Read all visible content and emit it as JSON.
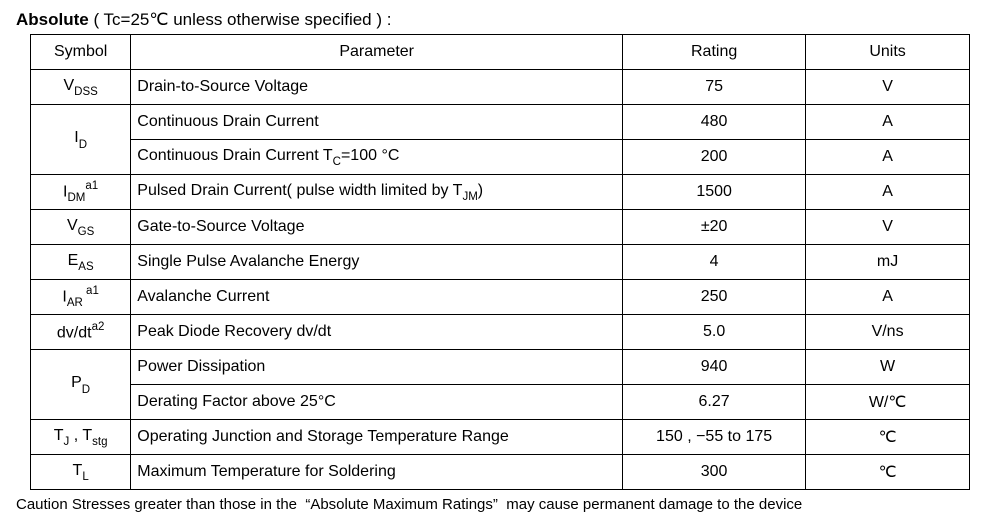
{
  "heading": {
    "title_bold": "Absolute",
    "title_rest": "( Tc=25℃  unless otherwise specified ) :"
  },
  "table": {
    "headers": {
      "symbol": "Symbol",
      "parameter": "Parameter",
      "rating": "Rating",
      "units": "Units"
    },
    "rows": {
      "vdss": {
        "sym_pre": "V",
        "sym_sub": "DSS",
        "sym_sup": "",
        "param": "Drain-to-Source Voltage",
        "rating": "75",
        "units": "V"
      },
      "id_cont": {
        "sym_pre": "I",
        "sym_sub": "D",
        "sym_sup": "",
        "param": "Continuous Drain Current",
        "rating": "480",
        "units": "A"
      },
      "id_cont100": {
        "param_pre": "Continuous Drain Current T",
        "param_sub": "C",
        "param_post": "=100 °C",
        "rating": "200",
        "units": "A"
      },
      "idm": {
        "sym_pre": "I",
        "sym_sub": "DM",
        "sym_sup": "a1",
        "param_pre": "Pulsed Drain Current( pulse width limited by T",
        "param_sub": "JM",
        "param_post": ")",
        "rating": "1500",
        "units": "A"
      },
      "vgs": {
        "sym_pre": "V",
        "sym_sub": "GS",
        "sym_sup": "",
        "param": "Gate-to-Source Voltage",
        "rating": "±20",
        "units": "V"
      },
      "eas": {
        "sym_pre": "E",
        "sym_sub": "AS",
        "sym_sup": "",
        "param": "Single Pulse Avalanche Energy",
        "rating": "4",
        "units": "mJ"
      },
      "iar": {
        "sym_pre": "I",
        "sym_sub": "AR ",
        "sym_sup": "a1",
        "param": "Avalanche Current",
        "rating": "250",
        "units": "A"
      },
      "dvdt": {
        "sym_pre": "dv/dt",
        "sym_sub": "",
        "sym_sup": "a2",
        "param": "Peak Diode Recovery dv/dt",
        "rating": "5.0",
        "units": "V/ns"
      },
      "pd_pd": {
        "sym_pre": "P",
        "sym_sub": "D",
        "sym_sup": "",
        "param": "Power Dissipation",
        "rating": "940",
        "units": "W"
      },
      "pd_derate": {
        "param": "Derating Factor above 25°C",
        "rating": "6.27",
        "units": "W/℃"
      },
      "tj": {
        "sym_pre": "T",
        "sym_sub": "J",
        "sym_mid": " , T",
        "sym_sub2": "stg",
        "param": "Operating Junction and Storage Temperature Range",
        "rating": "150 , −55 to 175",
        "units": "℃"
      },
      "tl": {
        "sym_pre": "T",
        "sym_sub": "L",
        "sym_sup": "",
        "param": "Maximum Temperature for Soldering",
        "rating": "300",
        "units": "℃"
      }
    }
  },
  "caution": "Caution Stresses greater than those in the  “Absolute Maximum Ratings”  may cause permanent damage to the device"
}
